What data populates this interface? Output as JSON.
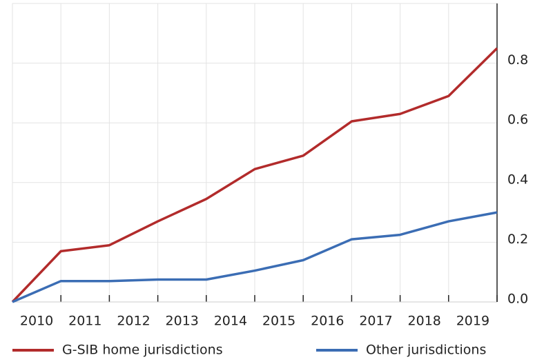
{
  "chart_data": {
    "type": "line",
    "x": [
      2010,
      2011,
      2012,
      2013,
      2014,
      2015,
      2016,
      2017,
      2018,
      2019,
      2020
    ],
    "xlim": [
      2010,
      2020
    ],
    "xticks": [
      {
        "value": 2010.5,
        "label": "2010"
      },
      {
        "value": 2011.5,
        "label": "2011"
      },
      {
        "value": 2012.5,
        "label": "2012"
      },
      {
        "value": 2013.5,
        "label": "2013"
      },
      {
        "value": 2014.5,
        "label": "2014"
      },
      {
        "value": 2015.5,
        "label": "2015"
      },
      {
        "value": 2016.5,
        "label": "2016"
      },
      {
        "value": 2017.5,
        "label": "2017"
      },
      {
        "value": 2018.5,
        "label": "2018"
      },
      {
        "value": 2019.5,
        "label": "2019"
      }
    ],
    "ylim": [
      0,
      1.0
    ],
    "yticks": [
      {
        "value": 0,
        "label": "0.0"
      },
      0.2,
      0.4,
      0.6,
      0.8
    ],
    "grid": true,
    "legend": "bottom",
    "series": [
      {
        "name": "G-SIB home jurisdictions",
        "color": "#b22b2b",
        "values": [
          0,
          0.17,
          0.19,
          0.27,
          0.345,
          0.445,
          0.49,
          0.605,
          0.63,
          0.69,
          0.85
        ]
      },
      {
        "name": "Other jurisdictions",
        "color": "#3b6db4",
        "values": [
          0,
          0.07,
          0.07,
          0.075,
          0.075,
          0.105,
          0.14,
          0.21,
          0.225,
          0.27,
          0.3
        ]
      }
    ]
  }
}
